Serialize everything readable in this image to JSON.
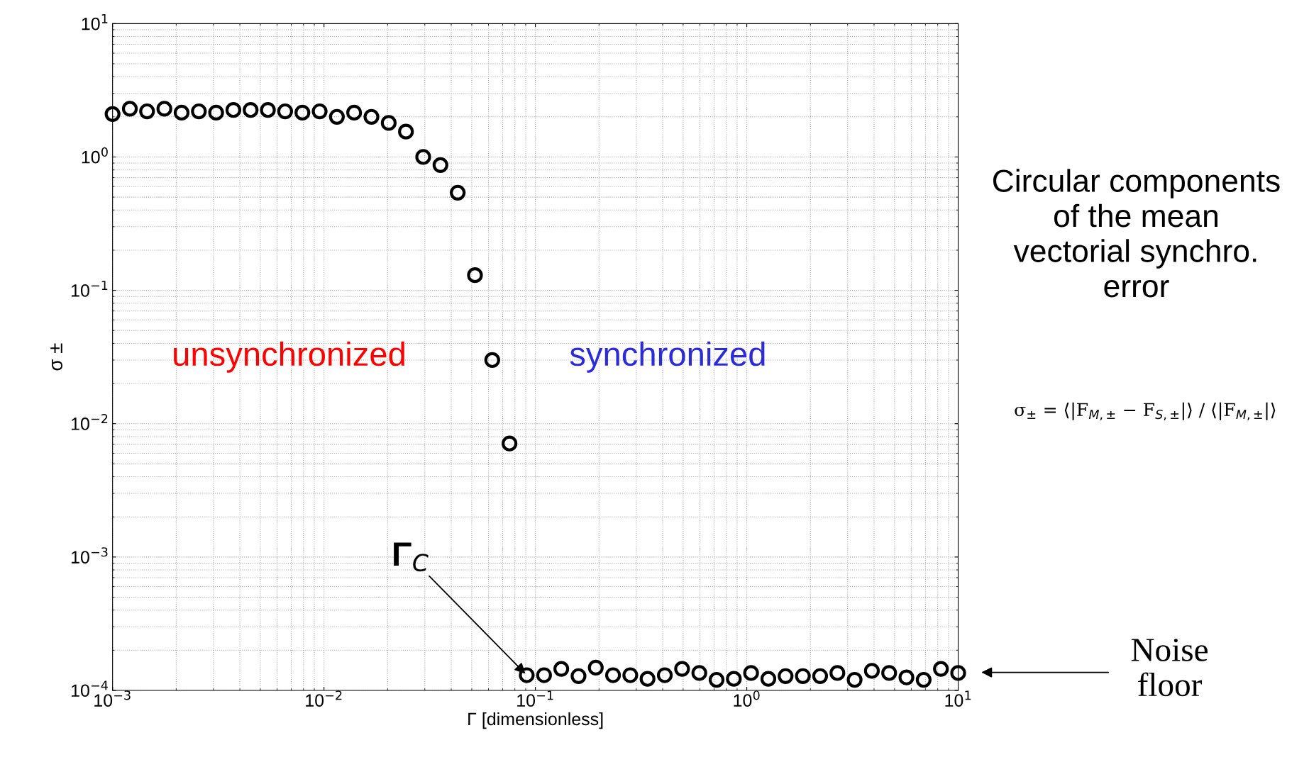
{
  "chart_data": {
    "type": "scatter",
    "xlabel": "Γ [dimensionless]",
    "ylabel": "σ ±",
    "log": "xy",
    "grid": true,
    "marker": "circle",
    "x": [
      0.001,
      0.001207,
      0.001456,
      0.001758,
      0.002121,
      0.00256,
      0.003089,
      0.003728,
      0.004498,
      0.005429,
      0.006551,
      0.007906,
      0.009541,
      0.01151,
      0.01389,
      0.01677,
      0.02024,
      0.02442,
      0.02947,
      0.03556,
      0.04292,
      0.05179,
      0.06251,
      0.07543,
      0.09103,
      0.1099,
      0.1326,
      0.16,
      0.1931,
      0.233,
      0.2812,
      0.3393,
      0.4095,
      0.4942,
      0.5964,
      0.7197,
      0.8685,
      1.048,
      1.265,
      1.526,
      1.842,
      2.223,
      2.683,
      3.237,
      3.907,
      4.715,
      5.69,
      6.866,
      8.286,
      10
    ],
    "series": [
      {
        "color": "#000000",
        "values": [
          2.1,
          2.3,
          2.2,
          2.3,
          2.15,
          2.2,
          2.15,
          2.25,
          2.25,
          2.25,
          2.2,
          2.15,
          2.2,
          2.0,
          2.15,
          2.0,
          1.8,
          1.55,
          1.0,
          0.87,
          0.54,
          0.13,
          0.03,
          0.0071,
          0.00013,
          0.00013,
          0.000145,
          0.000128,
          0.000148,
          0.00013,
          0.00013,
          0.000122,
          0.00013,
          0.000145,
          0.000135,
          0.00012,
          0.000122,
          0.000135,
          0.000122,
          0.000128,
          0.000128,
          0.000128,
          0.000135,
          0.00012,
          0.00014,
          0.000135,
          0.000125,
          0.00012,
          0.000145,
          0.000135
        ]
      }
    ],
    "xlim": [
      0.001,
      10
    ],
    "ylim": [
      0.0001,
      10
    ],
    "xticks": [
      {
        "value": 0.001,
        "label": "10$^{−3}$"
      },
      {
        "value": 0.01,
        "label": "10$^{−2}$"
      },
      {
        "value": 0.1,
        "label": "10$^{−1}$"
      },
      {
        "value": 1,
        "label": "10$^{0}$"
      },
      {
        "value": 10,
        "label": "10$^{1}$"
      }
    ],
    "yticks": [
      {
        "value": 0.0001,
        "label": "10$^{−4}$"
      },
      {
        "value": 0.001,
        "label": "10$^{−3}$"
      },
      {
        "value": 0.01,
        "label": "10$^{−2}$"
      },
      {
        "value": 0.1,
        "label": "10$^{−1}$"
      },
      {
        "value": 1,
        "label": "10$^{0}$"
      },
      {
        "value": 10,
        "label": "10$^{1}$"
      }
    ],
    "annotations": [
      "unsynchronized",
      "synchronized",
      {
        "text": "Γ$_{C}$",
        "x": 0.09103,
        "y": 0.00013
      },
      "Noise\nfloor",
      "Circular components\nof the mean\nvectorial synchro.\nerror",
      "σ$_{±}$ = ⟨|F$_{M,±}$ − F$_{S,±}$|⟩ / ⟨|F$_{M,±}$|⟩"
    ]
  }
}
